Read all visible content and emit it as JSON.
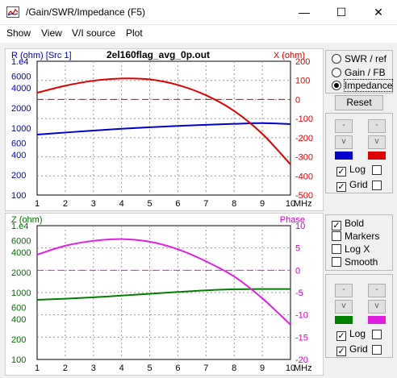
{
  "window": {
    "title": "/Gain/SWR/Impedance (F5)",
    "minimize": "—",
    "maximize": "☐",
    "close": "✕"
  },
  "menu": [
    "Show",
    "View",
    "V/I source",
    "Plot"
  ],
  "top_plot": {
    "file": "2el160flag_avg_0p.out",
    "left_label": "R (ohm) [Src 1]",
    "right_label": "X (ohm)",
    "left_ticks": [
      "1.e4",
      "6000",
      "4000",
      "2000",
      "1000",
      "600",
      "400",
      "200",
      "100"
    ],
    "right_ticks": [
      "200",
      "100",
      "0",
      "-100",
      "-200",
      "-300",
      "-400",
      "-500"
    ],
    "x_ticks": [
      "1",
      "2",
      "3",
      "4",
      "5",
      "6",
      "7",
      "8",
      "9",
      "10"
    ],
    "x_unit": "MHz"
  },
  "bottom_plot": {
    "left_label": "Z (ohm)",
    "right_label": "Phase",
    "left_ticks": [
      "1.e4",
      "6000",
      "4000",
      "2000",
      "1000",
      "600",
      "400",
      "200",
      "100"
    ],
    "right_ticks": [
      "10",
      "5",
      "0",
      "-5",
      "-10",
      "-15",
      "-20"
    ],
    "x_ticks": [
      "1",
      "2",
      "3",
      "4",
      "5",
      "6",
      "7",
      "8",
      "9",
      "10"
    ],
    "x_unit": "MHz"
  },
  "side_top": {
    "options": [
      "SWR / ref",
      "Gain / FB",
      "Impedance"
    ],
    "selected": "Impedance",
    "reset": "Reset",
    "up": "-",
    "down": "v",
    "log_label": "Log",
    "grid_label": "Grid",
    "log_checked": true,
    "grid_checked": true
  },
  "side_bottom": {
    "checks": [
      {
        "label": "Bold",
        "checked": true
      },
      {
        "label": "Markers",
        "checked": false
      },
      {
        "label": "Log X",
        "checked": false
      },
      {
        "label": "Smooth",
        "checked": false
      }
    ],
    "up": "-",
    "down": "v",
    "log_label": "Log",
    "grid_label": "Grid",
    "log_checked": true,
    "grid_checked": true
  },
  "colors": {
    "r_series": "#0000cc",
    "x_series": "#e00000",
    "z_series": "#008000",
    "phase_series": "#e020e0",
    "left_axis_text_top": "#0000c0",
    "right_axis_text_top": "#e00000",
    "left_axis_text_bot": "#007000",
    "right_axis_text_bot": "#d000d0"
  },
  "chart_data": [
    {
      "type": "line",
      "x": [
        1,
        2,
        3,
        4,
        5,
        6,
        7,
        8,
        9,
        10
      ],
      "ylim_left": [
        100,
        10000
      ],
      "ylim_right": [
        -500,
        200
      ],
      "log_left": true,
      "series": [
        {
          "name": "R (ohm) [Src 1]",
          "axis": "left",
          "values": [
            800,
            860,
            920,
            980,
            1030,
            1080,
            1120,
            1160,
            1190,
            1150
          ]
        },
        {
          "name": "X (ohm)",
          "axis": "right",
          "values": [
            35,
            72,
            98,
            110,
            105,
            76,
            22,
            -60,
            -180,
            -340
          ]
        }
      ],
      "ref_line_right": 0,
      "grid": true
    },
    {
      "type": "line",
      "x": [
        1,
        2,
        3,
        4,
        5,
        6,
        7,
        8,
        9,
        10
      ],
      "ylim_left": [
        100,
        10000
      ],
      "ylim_right": [
        -20,
        10
      ],
      "log_left": true,
      "series": [
        {
          "name": "Z (ohm)",
          "axis": "left",
          "values": [
            780,
            810,
            850,
            900,
            960,
            1020,
            1080,
            1120,
            1130,
            1130
          ]
        },
        {
          "name": "Phase",
          "axis": "right",
          "values": [
            3.5,
            5.5,
            6.6,
            7.0,
            6.4,
            4.7,
            2.0,
            -1.4,
            -6.3,
            -12.2
          ]
        }
      ],
      "ref_line_right": 0,
      "grid": true
    }
  ]
}
